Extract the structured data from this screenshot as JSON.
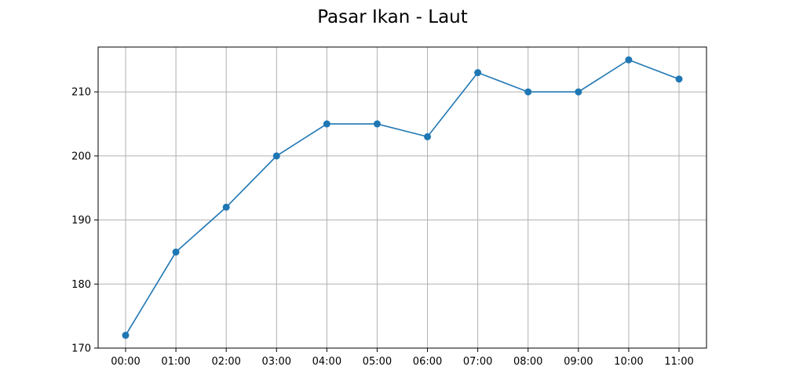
{
  "chart_data": {
    "type": "line",
    "title": "Pasar Ikan - Laut",
    "xlabel": "",
    "ylabel": "",
    "categories": [
      "00:00",
      "01:00",
      "02:00",
      "03:00",
      "04:00",
      "05:00",
      "06:00",
      "07:00",
      "08:00",
      "09:00",
      "10:00",
      "11:00"
    ],
    "series": [
      {
        "values": [
          172,
          185,
          192,
          200,
          205,
          205,
          203,
          213,
          210,
          210,
          215,
          212
        ],
        "color": "#1f77b4",
        "marker": "circle"
      }
    ],
    "ylim": [
      170,
      217
    ],
    "yticks": [
      170,
      180,
      190,
      200,
      210
    ],
    "grid": true,
    "legend": "none"
  }
}
